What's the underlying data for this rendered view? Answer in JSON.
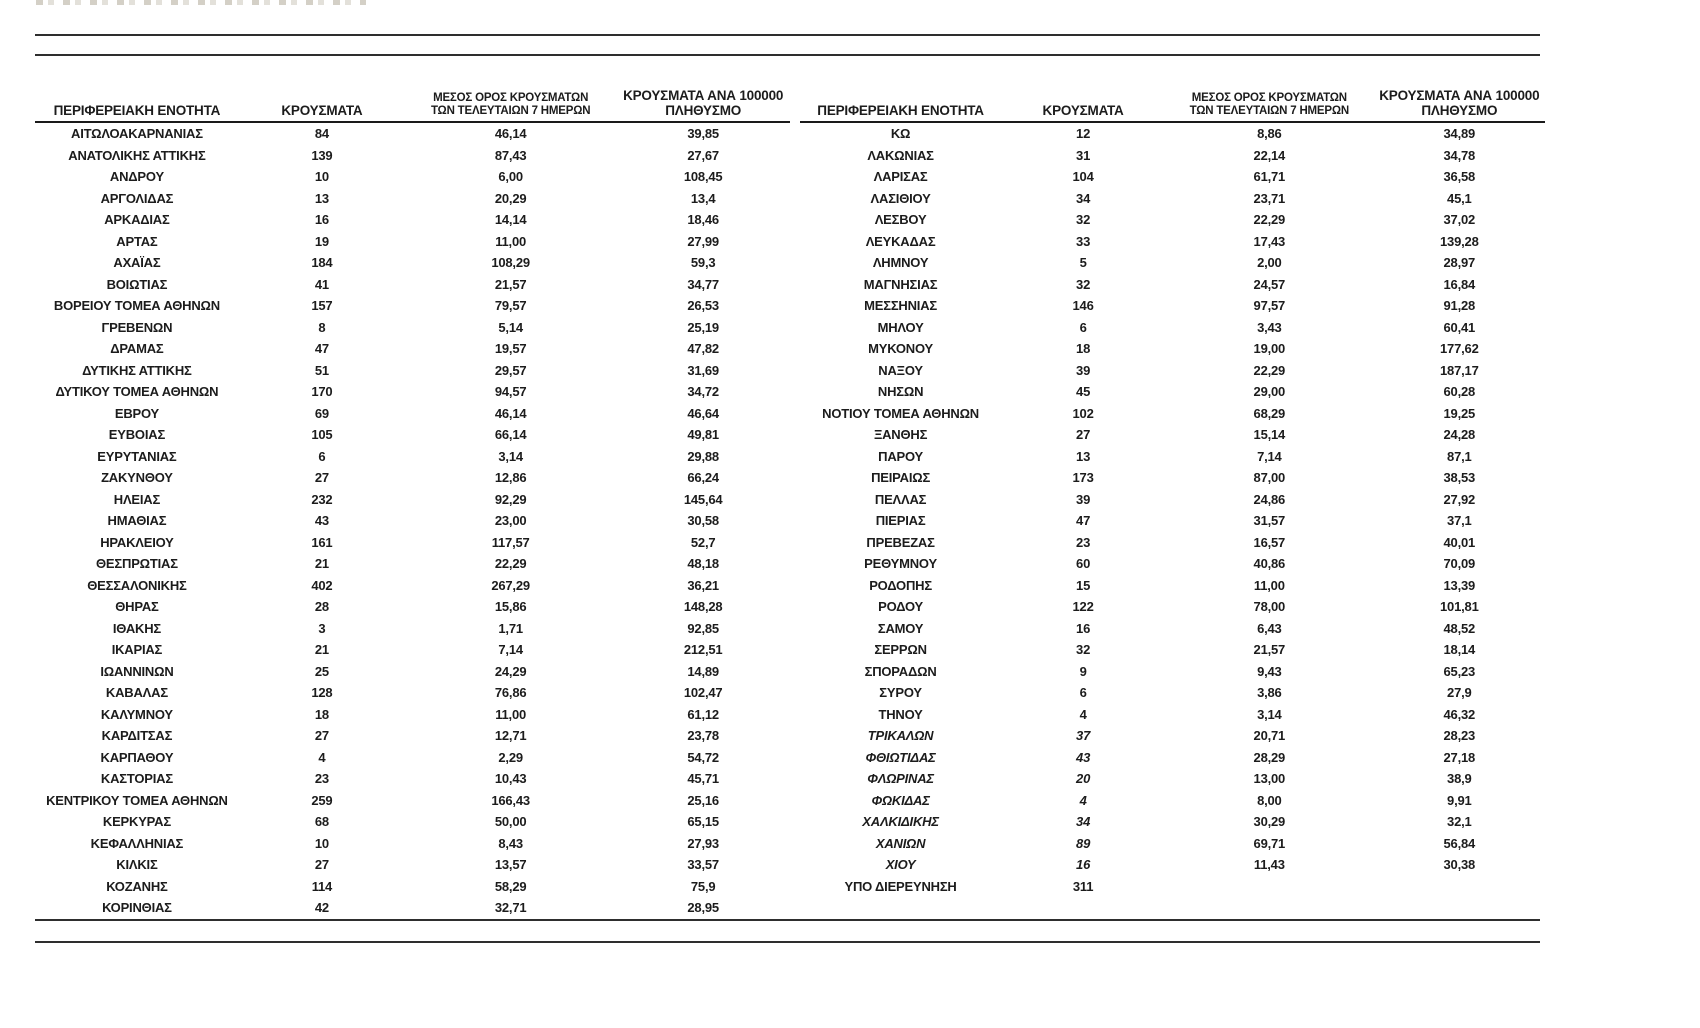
{
  "document": {
    "table_header": {
      "region_label": "ΠΕΡΙΦΕΡΕΙΑΚΗ ΕΝΟΤΗΤΑ",
      "cases_label": "ΚΡΟΥΣΜΑΤΑ",
      "avg7_label_line1": "ΜΕΣΟΣ ΟΡΟΣ ΚΡΟΥΣΜΑΤΩΝ",
      "avg7_label_line2": "ΤΩΝ ΤΕΛΕΥΤΑΙΩΝ 7 ΗΜΕΡΩΝ",
      "per100k_label_line1": "ΚΡΟΥΣΜΑΤΑ ΑΝΑ 100000",
      "per100k_label_line2": "ΠΛΗΘΥΣΜΟ"
    },
    "left_table_rows": [
      {
        "name": "ΑΙΤΩΛΟΑΚΑΡΝΑΝΙΑΣ",
        "cases": "84",
        "avg7": "46,14",
        "per100k": "39,85",
        "italic": false
      },
      {
        "name": "ΑΝΑΤΟΛΙΚΗΣ ΑΤΤΙΚΗΣ",
        "cases": "139",
        "avg7": "87,43",
        "per100k": "27,67",
        "italic": false
      },
      {
        "name": "ΑΝΔΡΟΥ",
        "cases": "10",
        "avg7": "6,00",
        "per100k": "108,45",
        "italic": false
      },
      {
        "name": "ΑΡΓΟΛΙΔΑΣ",
        "cases": "13",
        "avg7": "20,29",
        "per100k": "13,4",
        "italic": false
      },
      {
        "name": "ΑΡΚΑΔΙΑΣ",
        "cases": "16",
        "avg7": "14,14",
        "per100k": "18,46",
        "italic": false
      },
      {
        "name": "ΑΡΤΑΣ",
        "cases": "19",
        "avg7": "11,00",
        "per100k": "27,99",
        "italic": false
      },
      {
        "name": "ΑΧΑΪΑΣ",
        "cases": "184",
        "avg7": "108,29",
        "per100k": "59,3",
        "italic": false
      },
      {
        "name": "ΒΟΙΩΤΙΑΣ",
        "cases": "41",
        "avg7": "21,57",
        "per100k": "34,77",
        "italic": false
      },
      {
        "name": "ΒΟΡΕΙΟΥ ΤΟΜΕΑ ΑΘΗΝΩΝ",
        "cases": "157",
        "avg7": "79,57",
        "per100k": "26,53",
        "italic": false
      },
      {
        "name": "ΓΡΕΒΕΝΩΝ",
        "cases": "8",
        "avg7": "5,14",
        "per100k": "25,19",
        "italic": false
      },
      {
        "name": "ΔΡΑΜΑΣ",
        "cases": "47",
        "avg7": "19,57",
        "per100k": "47,82",
        "italic": false
      },
      {
        "name": "ΔΥΤΙΚΗΣ ΑΤΤΙΚΗΣ",
        "cases": "51",
        "avg7": "29,57",
        "per100k": "31,69",
        "italic": false
      },
      {
        "name": "ΔΥΤΙΚΟΥ ΤΟΜΕΑ ΑΘΗΝΩΝ",
        "cases": "170",
        "avg7": "94,57",
        "per100k": "34,72",
        "italic": false
      },
      {
        "name": "ΕΒΡΟΥ",
        "cases": "69",
        "avg7": "46,14",
        "per100k": "46,64",
        "italic": false
      },
      {
        "name": "ΕΥΒΟΙΑΣ",
        "cases": "105",
        "avg7": "66,14",
        "per100k": "49,81",
        "italic": false
      },
      {
        "name": "ΕΥΡΥΤΑΝΙΑΣ",
        "cases": "6",
        "avg7": "3,14",
        "per100k": "29,88",
        "italic": false
      },
      {
        "name": "ΖΑΚΥΝΘΟΥ",
        "cases": "27",
        "avg7": "12,86",
        "per100k": "66,24",
        "italic": false
      },
      {
        "name": "ΗΛΕΙΑΣ",
        "cases": "232",
        "avg7": "92,29",
        "per100k": "145,64",
        "italic": false
      },
      {
        "name": "ΗΜΑΘΙΑΣ",
        "cases": "43",
        "avg7": "23,00",
        "per100k": "30,58",
        "italic": false
      },
      {
        "name": "ΗΡΑΚΛΕΙΟΥ",
        "cases": "161",
        "avg7": "117,57",
        "per100k": "52,7",
        "italic": false
      },
      {
        "name": "ΘΕΣΠΡΩΤΙΑΣ",
        "cases": "21",
        "avg7": "22,29",
        "per100k": "48,18",
        "italic": false
      },
      {
        "name": "ΘΕΣΣΑΛΟΝΙΚΗΣ",
        "cases": "402",
        "avg7": "267,29",
        "per100k": "36,21",
        "italic": false
      },
      {
        "name": "ΘΗΡΑΣ",
        "cases": "28",
        "avg7": "15,86",
        "per100k": "148,28",
        "italic": false
      },
      {
        "name": "ΙΘΑΚΗΣ",
        "cases": "3",
        "avg7": "1,71",
        "per100k": "92,85",
        "italic": false
      },
      {
        "name": "ΙΚΑΡΙΑΣ",
        "cases": "21",
        "avg7": "7,14",
        "per100k": "212,51",
        "italic": false
      },
      {
        "name": "ΙΩΑΝΝΙΝΩΝ",
        "cases": "25",
        "avg7": "24,29",
        "per100k": "14,89",
        "italic": false
      },
      {
        "name": "ΚΑΒΑΛΑΣ",
        "cases": "128",
        "avg7": "76,86",
        "per100k": "102,47",
        "italic": false
      },
      {
        "name": "ΚΑΛΥΜΝΟΥ",
        "cases": "18",
        "avg7": "11,00",
        "per100k": "61,12",
        "italic": false
      },
      {
        "name": "ΚΑΡΔΙΤΣΑΣ",
        "cases": "27",
        "avg7": "12,71",
        "per100k": "23,78",
        "italic": false
      },
      {
        "name": "ΚΑΡΠΑΘΟΥ",
        "cases": "4",
        "avg7": "2,29",
        "per100k": "54,72",
        "italic": false
      },
      {
        "name": "ΚΑΣΤΟΡΙΑΣ",
        "cases": "23",
        "avg7": "10,43",
        "per100k": "45,71",
        "italic": false
      },
      {
        "name": "ΚΕΝΤΡΙΚΟΥ ΤΟΜΕΑ ΑΘΗΝΩΝ",
        "cases": "259",
        "avg7": "166,43",
        "per100k": "25,16",
        "italic": false
      },
      {
        "name": "ΚΕΡΚΥΡΑΣ",
        "cases": "68",
        "avg7": "50,00",
        "per100k": "65,15",
        "italic": false
      },
      {
        "name": "ΚΕΦΑΛΛΗΝΙΑΣ",
        "cases": "10",
        "avg7": "8,43",
        "per100k": "27,93",
        "italic": false
      },
      {
        "name": "ΚΙΛΚΙΣ",
        "cases": "27",
        "avg7": "13,57",
        "per100k": "33,57",
        "italic": false
      },
      {
        "name": "ΚΟΖΑΝΗΣ",
        "cases": "114",
        "avg7": "58,29",
        "per100k": "75,9",
        "italic": false
      },
      {
        "name": "ΚΟΡΙΝΘΙΑΣ",
        "cases": "42",
        "avg7": "32,71",
        "per100k": "28,95",
        "italic": false
      }
    ],
    "right_table_rows": [
      {
        "name": "ΚΩ",
        "cases": "12",
        "avg7": "8,86",
        "per100k": "34,89",
        "italic": false
      },
      {
        "name": "ΛΑΚΩΝΙΑΣ",
        "cases": "31",
        "avg7": "22,14",
        "per100k": "34,78",
        "italic": false
      },
      {
        "name": "ΛΑΡΙΣΑΣ",
        "cases": "104",
        "avg7": "61,71",
        "per100k": "36,58",
        "italic": false
      },
      {
        "name": "ΛΑΣΙΘΙΟΥ",
        "cases": "34",
        "avg7": "23,71",
        "per100k": "45,1",
        "italic": false
      },
      {
        "name": "ΛΕΣΒΟΥ",
        "cases": "32",
        "avg7": "22,29",
        "per100k": "37,02",
        "italic": false
      },
      {
        "name": "ΛΕΥΚΑΔΑΣ",
        "cases": "33",
        "avg7": "17,43",
        "per100k": "139,28",
        "italic": false
      },
      {
        "name": "ΛΗΜΝΟΥ",
        "cases": "5",
        "avg7": "2,00",
        "per100k": "28,97",
        "italic": false
      },
      {
        "name": "ΜΑΓΝΗΣΙΑΣ",
        "cases": "32",
        "avg7": "24,57",
        "per100k": "16,84",
        "italic": false
      },
      {
        "name": "ΜΕΣΣΗΝΙΑΣ",
        "cases": "146",
        "avg7": "97,57",
        "per100k": "91,28",
        "italic": false
      },
      {
        "name": "ΜΗΛΟΥ",
        "cases": "6",
        "avg7": "3,43",
        "per100k": "60,41",
        "italic": false
      },
      {
        "name": "ΜΥΚΟΝΟΥ",
        "cases": "18",
        "avg7": "19,00",
        "per100k": "177,62",
        "italic": false
      },
      {
        "name": "ΝΑΞΟΥ",
        "cases": "39",
        "avg7": "22,29",
        "per100k": "187,17",
        "italic": false
      },
      {
        "name": "ΝΗΣΩΝ",
        "cases": "45",
        "avg7": "29,00",
        "per100k": "60,28",
        "italic": false
      },
      {
        "name": "ΝΟΤΙΟΥ ΤΟΜΕΑ ΑΘΗΝΩΝ",
        "cases": "102",
        "avg7": "68,29",
        "per100k": "19,25",
        "italic": false
      },
      {
        "name": "ΞΑΝΘΗΣ",
        "cases": "27",
        "avg7": "15,14",
        "per100k": "24,28",
        "italic": false
      },
      {
        "name": "ΠΑΡΟΥ",
        "cases": "13",
        "avg7": "7,14",
        "per100k": "87,1",
        "italic": false
      },
      {
        "name": "ΠΕΙΡΑΙΩΣ",
        "cases": "173",
        "avg7": "87,00",
        "per100k": "38,53",
        "italic": false
      },
      {
        "name": "ΠΕΛΛΑΣ",
        "cases": "39",
        "avg7": "24,86",
        "per100k": "27,92",
        "italic": false
      },
      {
        "name": "ΠΙΕΡΙΑΣ",
        "cases": "47",
        "avg7": "31,57",
        "per100k": "37,1",
        "italic": false
      },
      {
        "name": "ΠΡΕΒΕΖΑΣ",
        "cases": "23",
        "avg7": "16,57",
        "per100k": "40,01",
        "italic": false
      },
      {
        "name": "ΡΕΘΥΜΝΟΥ",
        "cases": "60",
        "avg7": "40,86",
        "per100k": "70,09",
        "italic": false
      },
      {
        "name": "ΡΟΔΟΠΗΣ",
        "cases": "15",
        "avg7": "11,00",
        "per100k": "13,39",
        "italic": false
      },
      {
        "name": "ΡΟΔΟΥ",
        "cases": "122",
        "avg7": "78,00",
        "per100k": "101,81",
        "italic": false
      },
      {
        "name": "ΣΑΜΟΥ",
        "cases": "16",
        "avg7": "6,43",
        "per100k": "48,52",
        "italic": false
      },
      {
        "name": "ΣΕΡΡΩΝ",
        "cases": "32",
        "avg7": "21,57",
        "per100k": "18,14",
        "italic": false
      },
      {
        "name": "ΣΠΟΡΑΔΩΝ",
        "cases": "9",
        "avg7": "9,43",
        "per100k": "65,23",
        "italic": false
      },
      {
        "name": "ΣΥΡΟΥ",
        "cases": "6",
        "avg7": "3,86",
        "per100k": "27,9",
        "italic": false
      },
      {
        "name": "ΤΗΝΟΥ",
        "cases": "4",
        "avg7": "3,14",
        "per100k": "46,32",
        "italic": false
      },
      {
        "name": "ΤΡΙΚΑΛΩΝ",
        "cases": "37",
        "avg7": "20,71",
        "per100k": "28,23",
        "italic": true
      },
      {
        "name": "ΦΘΙΩΤΙΔΑΣ",
        "cases": "43",
        "avg7": "28,29",
        "per100k": "27,18",
        "italic": true
      },
      {
        "name": "ΦΛΩΡΙΝΑΣ",
        "cases": "20",
        "avg7": "13,00",
        "per100k": "38,9",
        "italic": true
      },
      {
        "name": "ΦΩΚΙΔΑΣ",
        "cases": "4",
        "avg7": "8,00",
        "per100k": "9,91",
        "italic": true
      },
      {
        "name": "ΧΑΛΚΙΔΙΚΗΣ",
        "cases": "34",
        "avg7": "30,29",
        "per100k": "32,1",
        "italic": true
      },
      {
        "name": "ΧΑΝΙΩΝ",
        "cases": "89",
        "avg7": "69,71",
        "per100k": "56,84",
        "italic": true
      },
      {
        "name": "ΧΙΟΥ",
        "cases": "16",
        "avg7": "11,43",
        "per100k": "30,38",
        "italic": true
      },
      {
        "name": "ΥΠΟ ΔΙΕΡΕΥΝΗΣΗ",
        "cases": "311",
        "avg7": "",
        "per100k": "",
        "italic": false
      }
    ]
  }
}
